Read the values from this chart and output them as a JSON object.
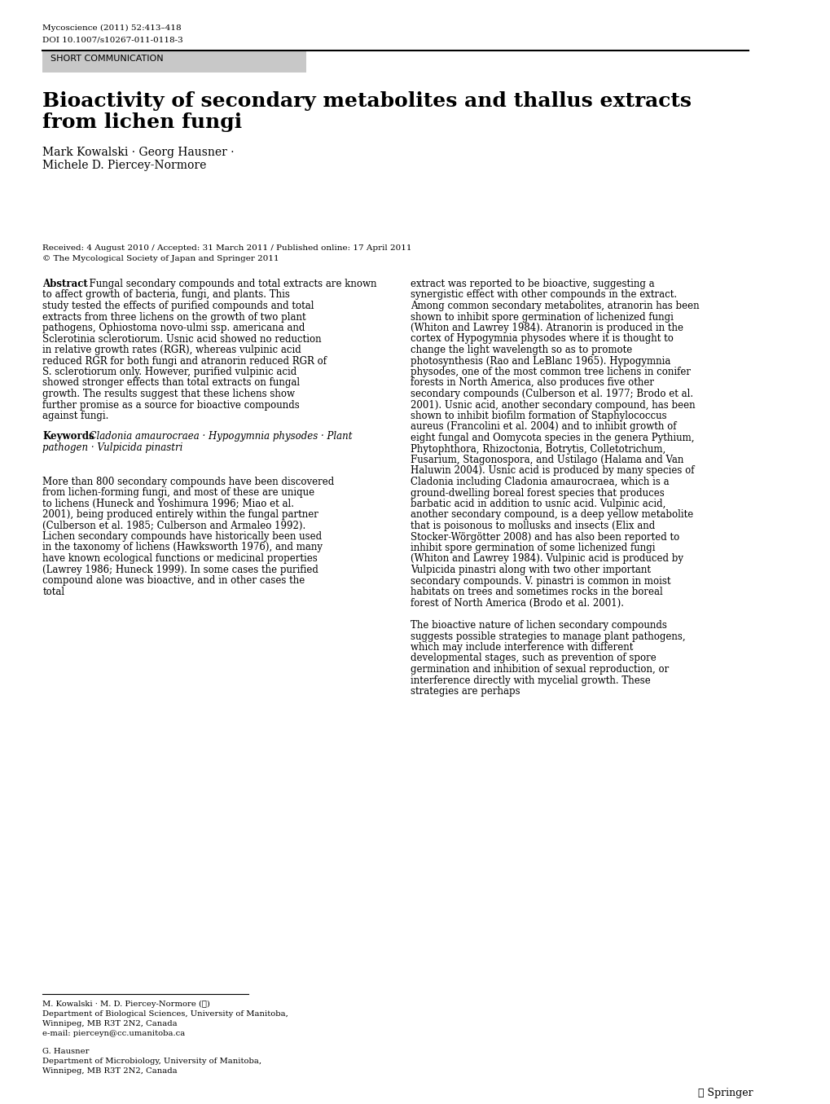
{
  "journal_line1": "Mycoscience (2011) 52:413–418",
  "journal_line2": "DOI 10.1007/s10267-011-0118-3",
  "short_comm_label": "SHORT COMMUNICATION",
  "short_comm_bg": "#c8c8c8",
  "title_line1": "Bioactivity of secondary metabolites and thallus extracts",
  "title_line2": "from lichen fungi",
  "authors_line1": "Mark Kowalski · Georg Hausner ·",
  "authors_line2": "Michele D. Piercey-Normore",
  "received": "Received: 4 August 2010 / Accepted: 31 March 2011 / Published online: 17 April 2011",
  "copyright": "© The Mycological Society of Japan and Springer 2011",
  "abstract_label": "Abstract",
  "abstract_left": "Fungal secondary compounds and total extracts are known to affect growth of bacteria, fungi, and plants. This study tested the effects of purified compounds and total extracts from three lichens on the growth of two plant pathogens, Ophiostoma novo-ulmi ssp. americana and Sclerotinia sclerotiorum. Usnic acid showed no reduction in relative growth rates (RGR), whereas vulpinic acid reduced RGR for both fungi and atranorin reduced RGR of S. sclerotiorum only. However, purified vulpinic acid showed stronger effects than total extracts on fungal growth. The results suggest that these lichens show further promise as a source for bioactive compounds against fungi.",
  "keywords_label": "Keywords",
  "keywords_text": "Cladonia amaurocraea · Hypogymnia physodes · Plant pathogen · Vulpicida pinastri",
  "intro_left": "More than 800 secondary compounds have been discovered from lichen-forming fungi, and most of these are unique to lichens (Huneck and Yoshimura 1996; Miao et al. 2001), being produced entirely within the fungal partner (Culberson et al. 1985; Culberson and Armaleo 1992). Lichen secondary compounds have historically been used in the taxonomy of lichens (Hawksworth 1976), and many have known ecological functions or medicinal properties (Lawrey 1986; Huneck 1999). In some cases the purified compound alone was bioactive, and in other cases the total",
  "abstract_right": "extract was reported to be bioactive, suggesting a synergistic effect with other compounds in the extract. Among common secondary metabolites, atranorin has been shown to inhibit spore germination of lichenized fungi (Whiton and Lawrey 1984). Atranorin is produced in the cortex of Hypogymnia physodes where it is thought to change the light wavelength so as to promote photosynthesis (Rao and LeBlanc 1965). Hypogymnia physodes, one of the most common tree lichens in conifer forests in North America, also produces five other secondary compounds (Culberson et al. 1977; Brodo et al. 2001). Usnic acid, another secondary compound, has been shown to inhibit biofilm formation of Staphylococcus aureus (Francolini et al. 2004) and to inhibit growth of eight fungal and Oomycota species in the genera Pythium, Phytophthora, Rhizoctonia, Botrytis, Colletotrichum, Fusarium, Stagonospora, and Ustilago (Halama and Van Haluwin 2004). Usnic acid is produced by many species of Cladonia including Cladonia amaurocraea, which is a ground-dwelling boreal forest species that produces barbatic acid in addition to usnic acid. Vulpinic acid, another secondary compound, is a deep yellow metabolite that is poisonous to mollusks and insects (Elix and Stocker-Wörgötter 2008) and has also been reported to inhibit spore germination of some lichenized fungi (Whiton and Lawrey 1984). Vulpinic acid is produced by Vulpicida pinastri along with two other important secondary compounds. V. pinastri is common in moist habitats on trees and sometimes rocks in the boreal forest of North America (Brodo et al. 2001).",
  "right_para2": "The bioactive nature of lichen secondary compounds suggests possible strategies to manage plant pathogens, which may include interference with different developmental stages, such as prevention of spore germination and inhibition of sexual reproduction, or interference directly with mycelial growth. These strategies are perhaps",
  "footnote1_line1": "M. Kowalski · M. D. Piercey-Normore (✉)",
  "footnote1_line2": "Department of Biological Sciences, University of Manitoba,",
  "footnote1_line3": "Winnipeg, MB R3T 2N2, Canada",
  "footnote1_line4": "e-mail: pierceyn@cc.umanitoba.ca",
  "footnote2_line1": "G. Hausner",
  "footnote2_line2": "Department of Microbiology, University of Manitoba,",
  "footnote2_line3": "Winnipeg, MB R3T 2N2, Canada",
  "springer_text": "Ⓢ Springer",
  "bg_color": "#ffffff",
  "text_color": "#000000",
  "link_color": "#0000cc"
}
